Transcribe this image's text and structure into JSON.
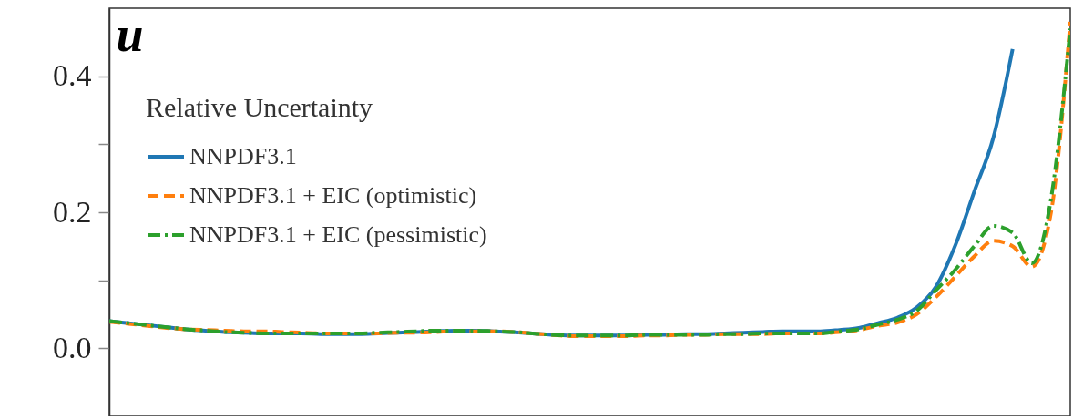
{
  "chart_data": {
    "type": "line",
    "title": "u",
    "legend_title": "Relative Uncertainty",
    "legend": "top left",
    "grid": false,
    "categories": [
      null,
      null,
      null,
      null,
      null,
      null,
      null,
      null,
      null,
      null,
      null,
      null,
      null,
      null,
      null,
      null,
      null,
      null,
      null,
      null,
      null,
      null,
      null,
      null,
      null,
      null,
      null,
      null,
      null,
      null,
      null,
      null,
      null,
      null,
      null,
      null,
      null,
      null,
      null,
      null,
      null,
      null,
      null,
      null,
      null,
      null,
      null,
      null,
      null,
      null,
      null
    ],
    "ylim": [
      -0.1,
      0.5
    ],
    "yticks": [
      {
        "value": 0,
        "label": "0.0"
      },
      {
        "value": 0.1,
        "label": null
      },
      {
        "value": 0.2,
        "label": "0.2"
      },
      {
        "value": 0.3,
        "label": null
      },
      {
        "value": 0.4,
        "label": "0.4"
      }
    ],
    "series": [
      {
        "name": "NNPDF3.1",
        "color": "#1f77b4",
        "line_style": "solid",
        "values": [
          0.04,
          0.037,
          0.034,
          0.031,
          0.028,
          0.026,
          0.024,
          0.023,
          0.022,
          0.022,
          0.022,
          0.021,
          0.021,
          0.021,
          0.022,
          0.023,
          0.024,
          0.025,
          0.026,
          0.026,
          0.025,
          0.024,
          0.022,
          0.02,
          0.019,
          0.019,
          0.019,
          0.019,
          0.02,
          0.02,
          0.021,
          0.021,
          0.022,
          0.023,
          0.024,
          0.025,
          0.025,
          0.025,
          0.027,
          0.03,
          0.037,
          0.045,
          0.06,
          0.09,
          0.15,
          0.23,
          0.31,
          0.44,
          null,
          null,
          null
        ]
      },
      {
        "name": "NNPDF3.1 + EIC (optimistic)",
        "color": "#ff7f0e",
        "line_style": "dashed",
        "values": [
          0.039,
          0.036,
          0.033,
          0.03,
          0.028,
          0.027,
          0.026,
          0.025,
          0.025,
          0.024,
          0.023,
          0.022,
          0.022,
          0.022,
          0.022,
          0.023,
          0.023,
          0.024,
          0.025,
          0.025,
          0.025,
          0.024,
          0.022,
          0.02,
          0.018,
          0.018,
          0.018,
          0.018,
          0.019,
          0.019,
          0.02,
          0.02,
          0.021,
          0.021,
          0.021,
          0.022,
          0.022,
          0.022,
          0.024,
          0.027,
          0.033,
          0.038,
          0.05,
          0.075,
          0.105,
          0.135,
          0.158,
          0.15,
          0.12,
          0.2,
          0.48
        ]
      },
      {
        "name": "NNPDF3.1 + EIC (pessimistic)",
        "color": "#2ca02c",
        "line_style": "dashdot",
        "values": [
          0.04,
          0.037,
          0.034,
          0.031,
          0.028,
          0.026,
          0.024,
          0.023,
          0.022,
          0.022,
          0.022,
          0.022,
          0.022,
          0.022,
          0.023,
          0.024,
          0.025,
          0.026,
          0.026,
          0.026,
          0.025,
          0.024,
          0.022,
          0.02,
          0.019,
          0.019,
          0.019,
          0.019,
          0.02,
          0.02,
          0.02,
          0.02,
          0.021,
          0.021,
          0.022,
          0.022,
          0.022,
          0.022,
          0.025,
          0.028,
          0.035,
          0.042,
          0.055,
          0.085,
          0.115,
          0.15,
          0.18,
          0.17,
          0.125,
          0.22,
          0.47
        ]
      }
    ]
  }
}
